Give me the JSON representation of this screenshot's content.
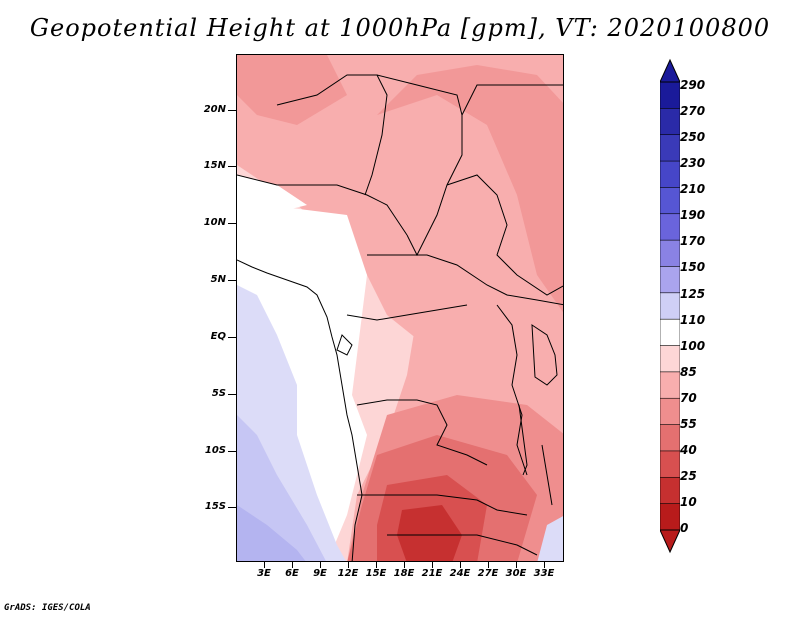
{
  "title": "Geopotential Height at 1000hPa [gpm], VT: 2020100800",
  "footer": "GrADS: IGES/COLA",
  "lat_labels": [
    "20N",
    "15N",
    "10N",
    "5N",
    "EQ",
    "5S",
    "10S",
    "15S"
  ],
  "lon_labels": [
    "3E",
    "6E",
    "9E",
    "12E",
    "15E",
    "18E",
    "21E",
    "24E",
    "27E",
    "30E",
    "33E"
  ],
  "colorbar": {
    "labels": [
      "290",
      "270",
      "250",
      "230",
      "210",
      "190",
      "170",
      "150",
      "125",
      "110",
      "100",
      "85",
      "70",
      "55",
      "40",
      "25",
      "10",
      "0"
    ],
    "colors": [
      "#1a1a9a",
      "#2a2aa8",
      "#3a3ab8",
      "#4646c8",
      "#5656d4",
      "#6a64dc",
      "#8a82e4",
      "#aaa4ee",
      "#cfcff6",
      "#ffffff",
      "#fdd6d6",
      "#f8aeae",
      "#ef8e8e",
      "#e47070",
      "#d85050",
      "#c63030",
      "#b81b1b"
    ],
    "top_cap_color": "#1a1a9a",
    "bottom_cap_color": "#b81b1b"
  },
  "field_colors": {
    "white": "#ffffff",
    "light_blue": "#dcdcf8",
    "blue": "#c6c6f4",
    "deep_blue": "#b4b4f0",
    "pale_pink": "#fdd6d6",
    "pink": "#f8aeae",
    "salmon": "#ef8e8e",
    "red": "#e47070",
    "deep_red": "#d85050",
    "darkest_red": "#c63030"
  }
}
